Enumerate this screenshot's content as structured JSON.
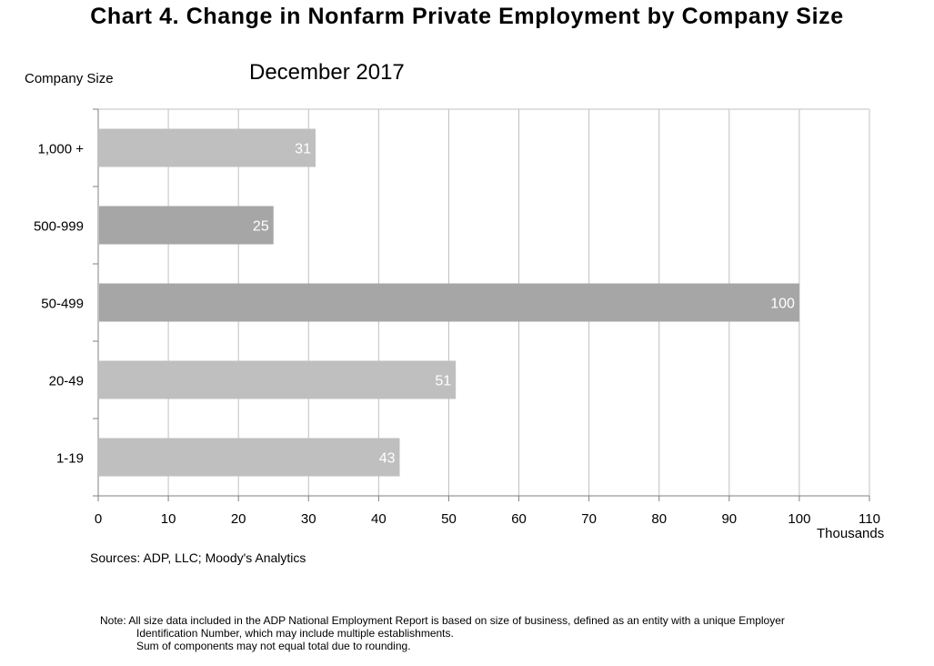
{
  "header": {
    "title": "Chart 4. Change in Nonfarm Private Employment by Company Size",
    "subtitle": "December 2017",
    "axis_caption": "Company Size",
    "unit_label": "Thousands"
  },
  "footer": {
    "source": "Sources: ADP, LLC; Moody's Analytics",
    "note_lines": [
      "Note:  All size data included in the ADP National Employment Report is based on size of business, defined as an entity with a unique Employer",
      "Identification Number, which may include multiple establishments.",
      "Sum of components may not equal total due to rounding."
    ]
  },
  "chart_data": {
    "type": "bar",
    "orientation": "horizontal",
    "categories": [
      "1,000 +",
      "500-999",
      "50-499",
      "20-49",
      "1-19"
    ],
    "values": [
      31,
      25,
      100,
      51,
      43
    ],
    "data_labels": [
      "31",
      "25",
      "100",
      "51",
      "43"
    ],
    "xlim": [
      0,
      110
    ],
    "xticks": [
      0,
      10,
      20,
      30,
      40,
      50,
      60,
      70,
      80,
      90,
      100,
      110
    ],
    "xlabel": "Thousands",
    "ylabel": "Company Size",
    "grid": true,
    "legend": "none",
    "bar_colors": [
      "#bfbfbf",
      "#a6a6a6",
      "#a6a6a6",
      "#bfbfbf",
      "#bfbfbf"
    ],
    "grid_color": "#c0c0c0",
    "label_color": "#ffffff"
  }
}
